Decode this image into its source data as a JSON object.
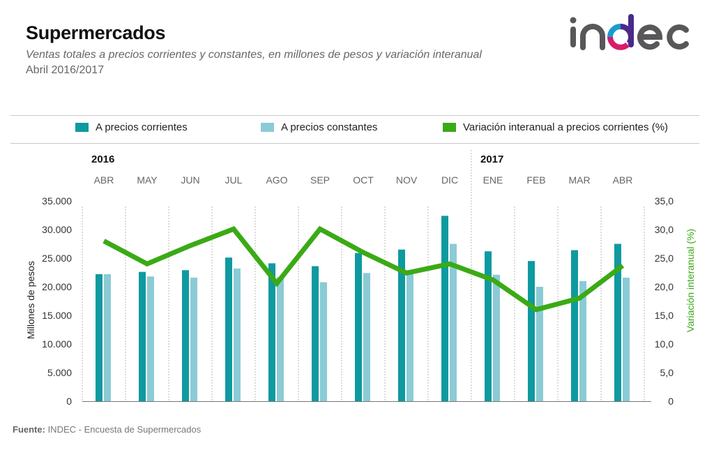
{
  "header": {
    "title": "Supermercados",
    "subtitle": "Ventas totales a precios corrientes y constantes, en millones de pesos y variación interanual",
    "period": "Abril 2016/2017",
    "logo_text": "indec"
  },
  "colors": {
    "corrientes": "#0e9aa0",
    "constantes": "#8bcbd5",
    "variacion": "#3aaa16",
    "logo_gray": "#58585a",
    "logo_purple": "#4a2a8a",
    "logo_pink": "#d81b6a",
    "logo_cyan": "#1a9bd0"
  },
  "legend": {
    "items": [
      {
        "label": "A precios corrientes",
        "key": "corrientes"
      },
      {
        "label": "A precios constantes",
        "key": "constantes"
      },
      {
        "label": "Variación interanual a precios corrientes (%)",
        "key": "variacion"
      }
    ]
  },
  "years": {
    "y2016": "2016",
    "y2017": "2017"
  },
  "footer": {
    "source_label": "Fuente:",
    "source_text": " INDEC - Encuesta de Supermercados"
  },
  "chart_data": {
    "type": "bar",
    "title": "Supermercados",
    "categories": [
      "ABR",
      "MAY",
      "JUN",
      "JUL",
      "AGO",
      "SEP",
      "OCT",
      "NOV",
      "DIC",
      "ENE",
      "FEB",
      "MAR",
      "ABR"
    ],
    "year_groups": [
      {
        "label": "2016",
        "from": "ABR",
        "count": 9
      },
      {
        "label": "2017",
        "from": "ENE",
        "count": 4
      }
    ],
    "series": [
      {
        "name": "A precios corrientes",
        "type": "bar",
        "axis": "left",
        "values": [
          22200,
          22600,
          22900,
          25100,
          24100,
          23600,
          25900,
          26500,
          32400,
          26200,
          24500,
          26400,
          27500
        ]
      },
      {
        "name": "A precios constantes",
        "type": "bar",
        "axis": "left",
        "values": [
          22200,
          21800,
          21600,
          23200,
          21700,
          20800,
          22400,
          22400,
          27500,
          22100,
          20000,
          21000,
          21600
        ]
      },
      {
        "name": "Variación interanual a precios corrientes (%)",
        "type": "line",
        "axis": "right",
        "values": [
          28.0,
          24.0,
          27.2,
          30.1,
          20.6,
          30.1,
          26.0,
          22.4,
          24.0,
          21.2,
          16.0,
          18.0,
          23.7
        ]
      }
    ],
    "ylabel": "Millones de pesos",
    "y2label": "Variación interanual (%)",
    "ylim": [
      0,
      35000
    ],
    "y2lim": [
      0,
      35
    ],
    "yticks": [
      "0",
      "5.000",
      "10.000",
      "15.000",
      "20.000",
      "25.000",
      "30.000",
      "35.000"
    ],
    "y2ticks": [
      "0",
      "5,0",
      "10,0",
      "15,0",
      "20,0",
      "25,0",
      "30,0",
      "35,0"
    ],
    "grid": "vertical dashed separators",
    "legend_position": "top"
  }
}
